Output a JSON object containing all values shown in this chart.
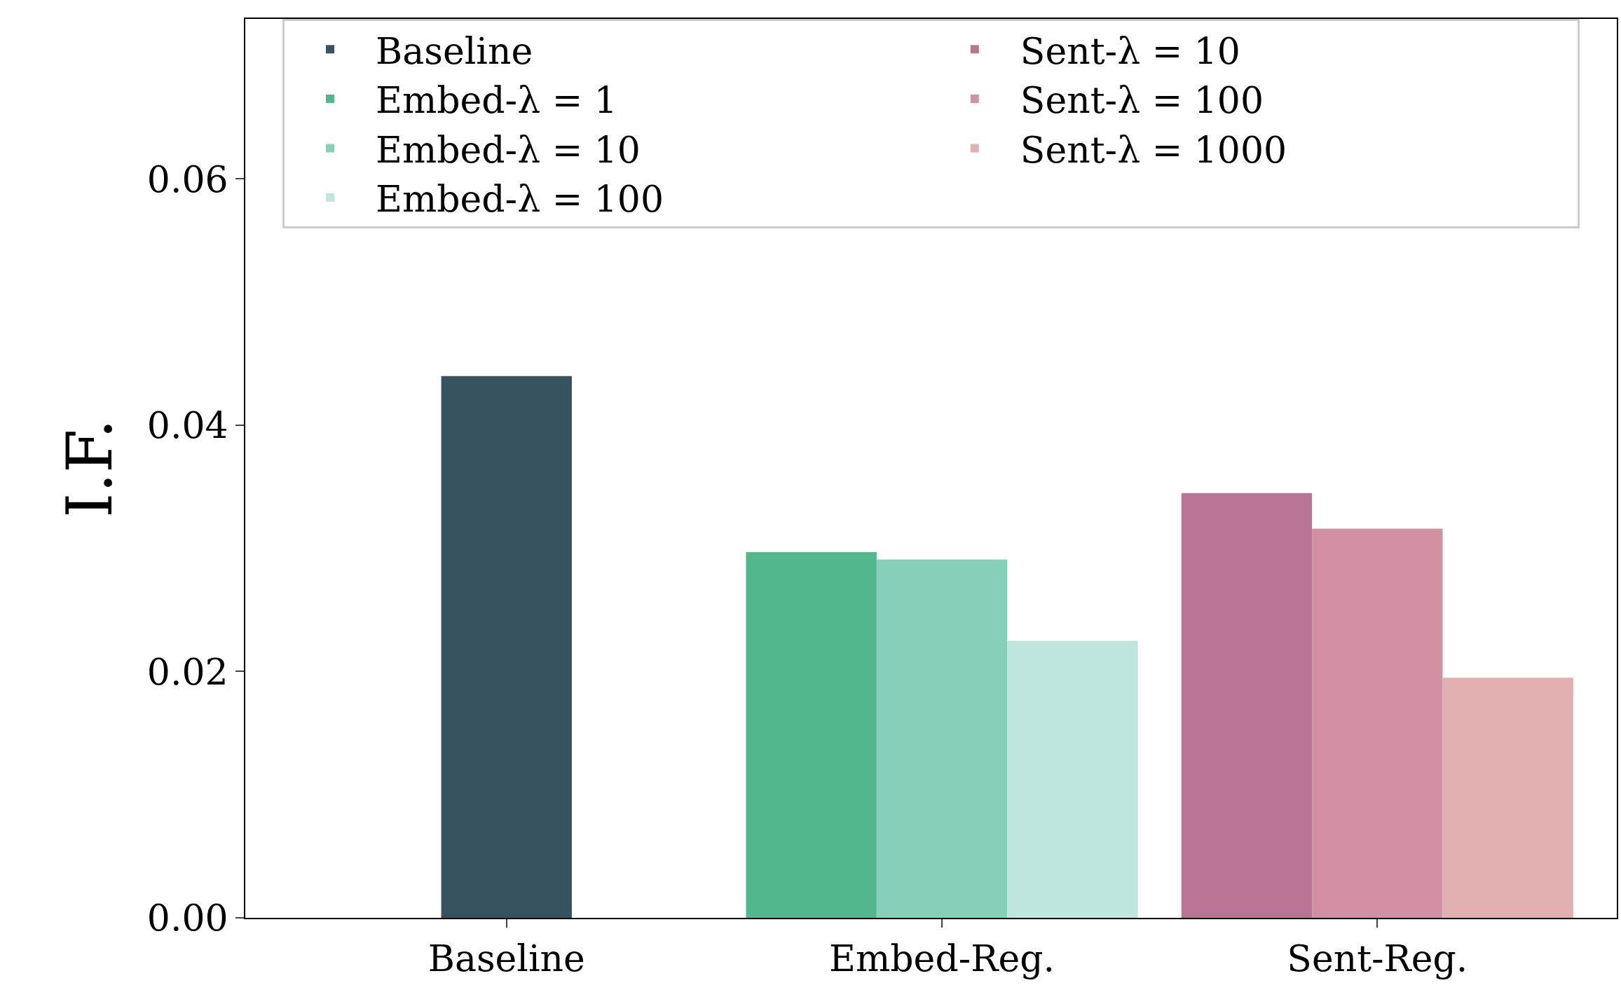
{
  "chart_data": {
    "type": "bar",
    "ylabel": "I.F.",
    "categories": [
      "Baseline",
      "Embed-Reg.",
      "Sent-Reg."
    ],
    "ylim": [
      0,
      0.073
    ],
    "yticks": [
      {
        "value": 0,
        "label": "0.00"
      },
      0.02,
      0.04,
      0.06
    ],
    "grid": false,
    "legend": "top",
    "series": [
      {
        "name": "Baseline",
        "color": "#37535f",
        "values": [
          0.044,
          null,
          null
        ]
      },
      {
        "name": "Embed-λ = 1",
        "color": "#52b78c",
        "values": [
          null,
          0.0297,
          null
        ]
      },
      {
        "name": "Embed-λ = 10",
        "color": "#86cfb9",
        "values": [
          null,
          0.0291,
          null
        ]
      },
      {
        "name": "Embed-λ = 100",
        "color": "#bee6de",
        "values": [
          null,
          0.0225,
          null
        ]
      },
      {
        "name": "Sent-λ = 10",
        "color": "#b87593",
        "values": [
          null,
          null,
          0.0345
        ]
      },
      {
        "name": "Sent-λ = 100",
        "color": "#d191a3",
        "values": [
          null,
          null,
          0.0316
        ]
      },
      {
        "name": "Sent-λ = 1000",
        "color": "#e2b0b1",
        "values": [
          null,
          null,
          0.0195
        ]
      }
    ]
  }
}
